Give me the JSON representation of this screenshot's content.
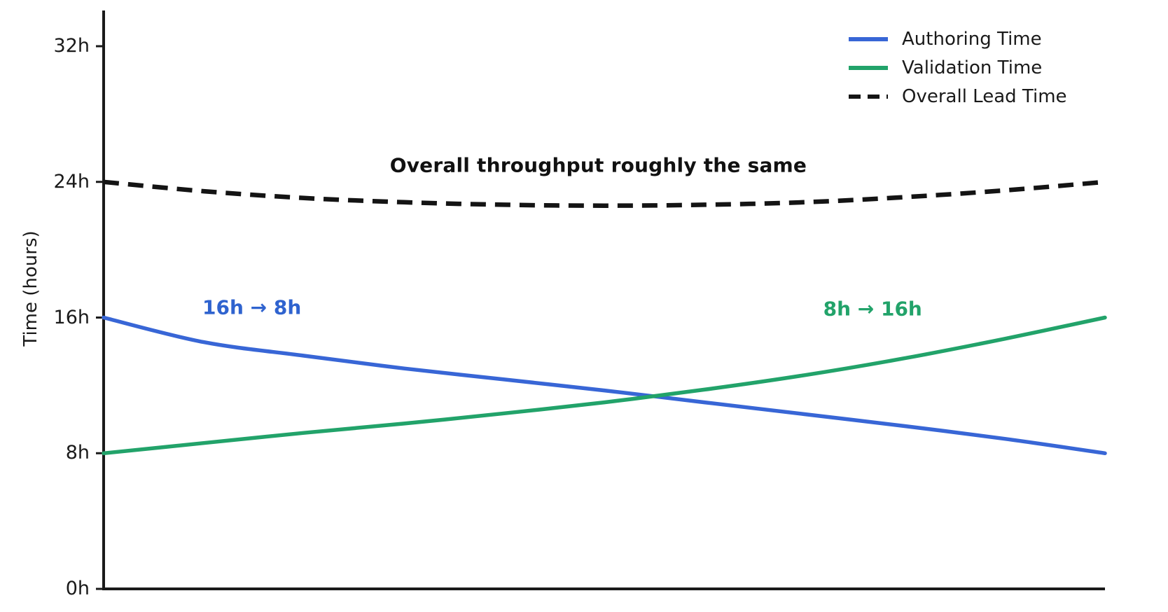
{
  "chart_data": {
    "type": "line",
    "title": "",
    "xlabel": "",
    "ylabel": "Time (hours)",
    "ylim": [
      0,
      32
    ],
    "grid": false,
    "legend_position": "top-right",
    "y_ticks": [
      {
        "value": 0,
        "label": "0h"
      },
      {
        "value": 8,
        "label": "8h"
      },
      {
        "value": 16,
        "label": "16h"
      },
      {
        "value": 24,
        "label": "24h"
      },
      {
        "value": 32,
        "label": "32h"
      }
    ],
    "x": [
      0,
      0.1,
      0.2,
      0.3,
      0.4,
      0.5,
      0.6,
      0.7,
      0.8,
      0.9,
      1.0
    ],
    "series": [
      {
        "name": "Authoring Time",
        "color": "#3866d6",
        "style": "solid",
        "values": [
          16.0,
          14.55,
          13.75,
          13.0,
          12.35,
          11.7,
          11.0,
          10.3,
          9.6,
          8.85,
          8.0
        ]
      },
      {
        "name": "Validation Time",
        "color": "#22a36a",
        "style": "solid",
        "values": [
          8.0,
          8.6,
          9.2,
          9.75,
          10.35,
          11.0,
          11.75,
          12.6,
          13.6,
          14.75,
          16.0
        ]
      },
      {
        "name": "Overall Lead Time",
        "color": "#141414",
        "style": "dashed",
        "values": [
          24.0,
          23.45,
          23.05,
          22.8,
          22.65,
          22.6,
          22.65,
          22.8,
          23.1,
          23.5,
          24.0
        ]
      }
    ],
    "annotations": [
      {
        "text": "Overall throughput roughly the same",
        "color": "#111111",
        "t": 0.494,
        "hours": 24.97
      },
      {
        "text": "16h → 8h",
        "color": "#2f63cf",
        "t": 0.148,
        "hours": 16.6
      },
      {
        "text": "8h → 16h",
        "color": "#22a36a",
        "t": 0.768,
        "hours": 16.5
      }
    ]
  }
}
